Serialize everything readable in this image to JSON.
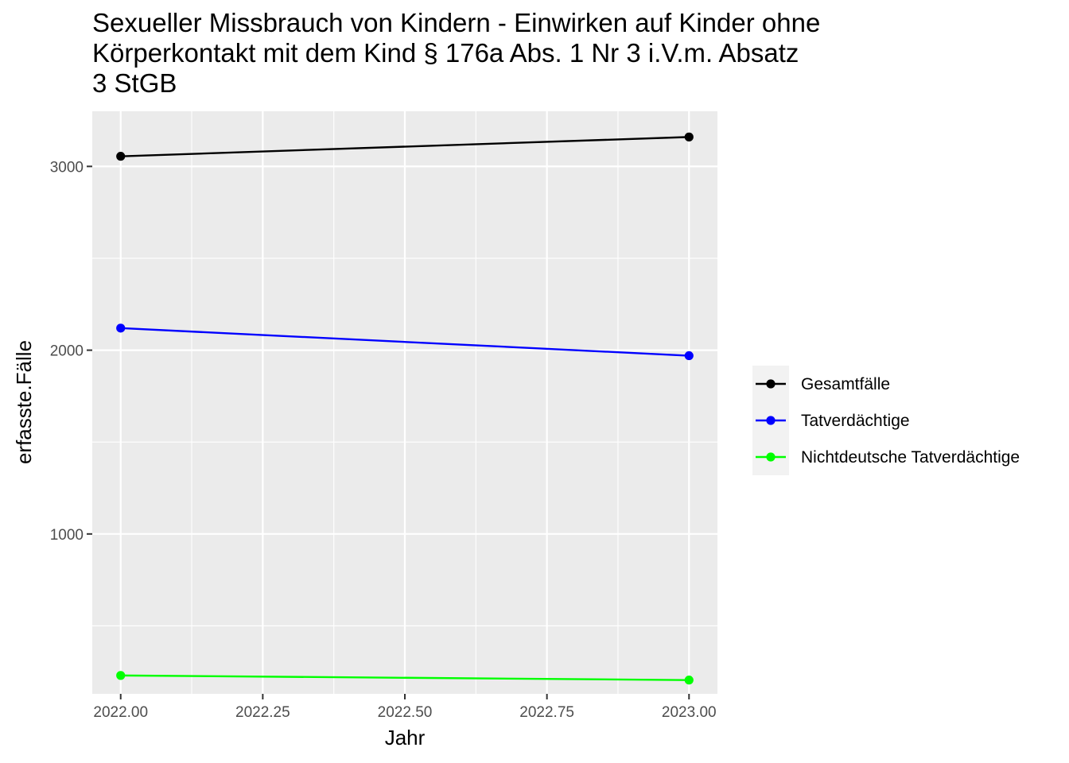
{
  "chart_data": {
    "type": "line",
    "title_lines": [
      "Sexueller Missbrauch von Kindern - Einwirken auf Kinder ohne",
      "Körperkontakt mit dem Kind § 176a Abs. 1 Nr 3 i.V.m. Absatz",
      "3 StGB"
    ],
    "xlabel": "Jahr",
    "ylabel": "erfasste.Fälle",
    "xlim": [
      1999.95,
      2023.05
    ],
    "ylim": [
      130,
      3300
    ],
    "x_ticks": [
      2022.0,
      2022.25,
      2022.5,
      2022.75,
      2023.0
    ],
    "x_tick_labels": [
      "2022.00",
      "2022.25",
      "2022.50",
      "2022.75",
      "2023.00"
    ],
    "y_ticks": [
      1000,
      2000,
      3000
    ],
    "y_tick_labels": [
      "1000",
      "2000",
      "3000"
    ],
    "grid": true,
    "legend_position": "right",
    "x": [
      2022,
      2023
    ],
    "series": [
      {
        "name": "Gesamtfälle",
        "color": "#000000",
        "values": [
          3055,
          3160
        ]
      },
      {
        "name": "Tatverdächtige",
        "color": "#0000ff",
        "values": [
          2120,
          1970
        ]
      },
      {
        "name": "Nichtdeutsche Tatverdächtige",
        "color": "#00ff00",
        "values": [
          230,
          205
        ]
      }
    ]
  }
}
